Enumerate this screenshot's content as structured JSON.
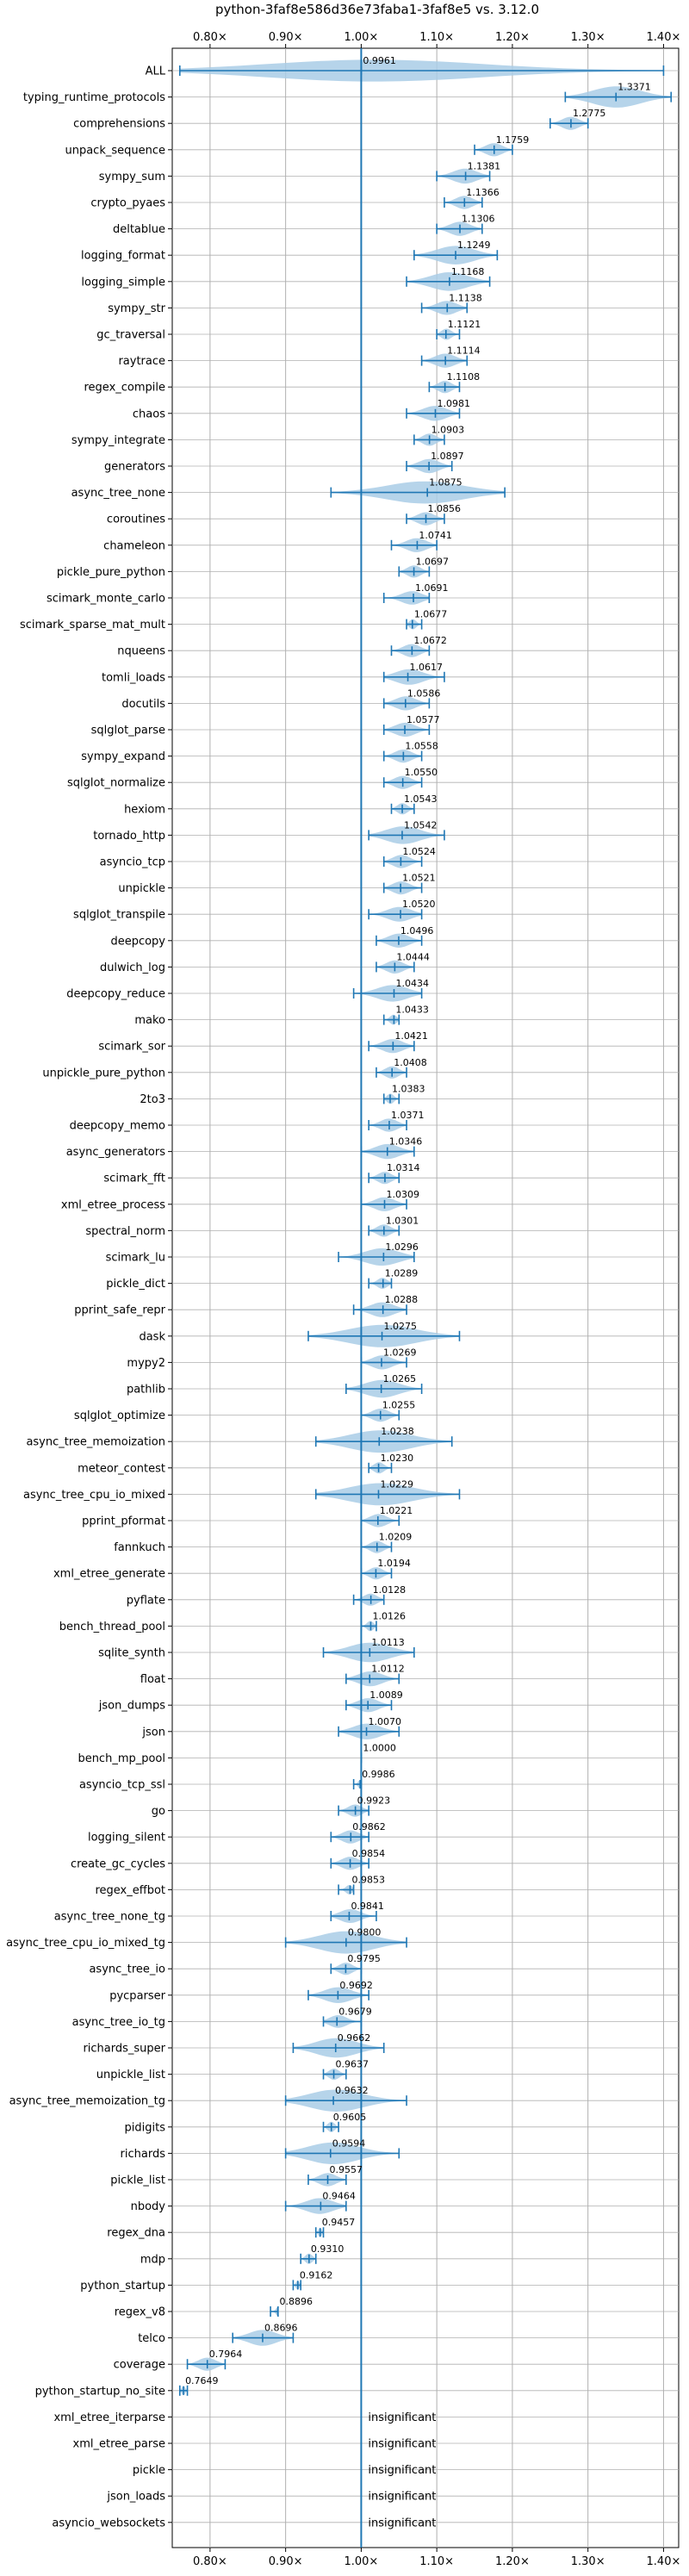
{
  "chart_data": {
    "type": "violin",
    "title": "python-3faf8e586d36e73faba1-3faf8e5 vs. 3.12.0",
    "xlabel": "",
    "ylabel": "",
    "xlim": [
      0.75,
      1.42
    ],
    "x_ticks": [
      0.8,
      0.9,
      1.0,
      1.1,
      1.2,
      1.3,
      1.4
    ],
    "x_tick_labels": [
      "0.80×",
      "0.90×",
      "1.00×",
      "1.10×",
      "1.20×",
      "1.30×",
      "1.40×"
    ],
    "x_ticks_top": true,
    "grid": true,
    "reference_line": 1.0,
    "colors": {
      "violin": "#a9cce6",
      "whisker": "#1f77b4",
      "grid": "#b0b0b0",
      "ref": "#1f77b4"
    },
    "insignificant_label": "insignificant",
    "benchmarks": [
      {
        "name": "ALL",
        "value": 1.0,
        "label": "0.9961",
        "min": 0.76,
        "max": 1.4
      },
      {
        "name": "typing_runtime_protocols",
        "value": 1.3371,
        "label": "1.3371",
        "min": 1.27,
        "max": 1.41
      },
      {
        "name": "comprehensions",
        "value": 1.2775,
        "label": "1.2775",
        "min": 1.25,
        "max": 1.3
      },
      {
        "name": "unpack_sequence",
        "value": 1.1759,
        "label": "1.1759",
        "min": 1.15,
        "max": 1.2
      },
      {
        "name": "sympy_sum",
        "value": 1.1381,
        "label": "1.1381",
        "min": 1.1,
        "max": 1.17
      },
      {
        "name": "crypto_pyaes",
        "value": 1.1366,
        "label": "1.1366",
        "min": 1.11,
        "max": 1.16
      },
      {
        "name": "deltablue",
        "value": 1.1306,
        "label": "1.1306",
        "min": 1.1,
        "max": 1.16
      },
      {
        "name": "logging_format",
        "value": 1.1249,
        "label": "1.1249",
        "min": 1.07,
        "max": 1.18
      },
      {
        "name": "logging_simple",
        "value": 1.1168,
        "label": "1.1168",
        "min": 1.06,
        "max": 1.17
      },
      {
        "name": "sympy_str",
        "value": 1.1138,
        "label": "1.1138",
        "min": 1.08,
        "max": 1.14
      },
      {
        "name": "gc_traversal",
        "value": 1.1121,
        "label": "1.1121",
        "min": 1.1,
        "max": 1.13
      },
      {
        "name": "raytrace",
        "value": 1.1114,
        "label": "1.1114",
        "min": 1.08,
        "max": 1.14
      },
      {
        "name": "regex_compile",
        "value": 1.1108,
        "label": "1.1108",
        "min": 1.09,
        "max": 1.13
      },
      {
        "name": "chaos",
        "value": 1.0981,
        "label": "1.0981",
        "min": 1.06,
        "max": 1.13
      },
      {
        "name": "sympy_integrate",
        "value": 1.0903,
        "label": "1.0903",
        "min": 1.07,
        "max": 1.11
      },
      {
        "name": "generators",
        "value": 1.0897,
        "label": "1.0897",
        "min": 1.06,
        "max": 1.12
      },
      {
        "name": "async_tree_none",
        "value": 1.0875,
        "label": "1.0875",
        "min": 0.96,
        "max": 1.19
      },
      {
        "name": "coroutines",
        "value": 1.0856,
        "label": "1.0856",
        "min": 1.06,
        "max": 1.11
      },
      {
        "name": "chameleon",
        "value": 1.0741,
        "label": "1.0741",
        "min": 1.04,
        "max": 1.1
      },
      {
        "name": "pickle_pure_python",
        "value": 1.0697,
        "label": "1.0697",
        "min": 1.05,
        "max": 1.09
      },
      {
        "name": "scimark_monte_carlo",
        "value": 1.0691,
        "label": "1.0691",
        "min": 1.03,
        "max": 1.09
      },
      {
        "name": "scimark_sparse_mat_mult",
        "value": 1.0677,
        "label": "1.0677",
        "min": 1.06,
        "max": 1.08
      },
      {
        "name": "nqueens",
        "value": 1.0672,
        "label": "1.0672",
        "min": 1.04,
        "max": 1.09
      },
      {
        "name": "tomli_loads",
        "value": 1.0617,
        "label": "1.0617",
        "min": 1.03,
        "max": 1.11
      },
      {
        "name": "docutils",
        "value": 1.0586,
        "label": "1.0586",
        "min": 1.03,
        "max": 1.09
      },
      {
        "name": "sqlglot_parse",
        "value": 1.0577,
        "label": "1.0577",
        "min": 1.03,
        "max": 1.09
      },
      {
        "name": "sympy_expand",
        "value": 1.0558,
        "label": "1.0558",
        "min": 1.03,
        "max": 1.08
      },
      {
        "name": "sqlglot_normalize",
        "value": 1.055,
        "label": "1.0550",
        "min": 1.03,
        "max": 1.08
      },
      {
        "name": "hexiom",
        "value": 1.0543,
        "label": "1.0543",
        "min": 1.04,
        "max": 1.07
      },
      {
        "name": "tornado_http",
        "value": 1.0542,
        "label": "1.0542",
        "min": 1.01,
        "max": 1.11
      },
      {
        "name": "asyncio_tcp",
        "value": 1.0524,
        "label": "1.0524",
        "min": 1.03,
        "max": 1.08
      },
      {
        "name": "unpickle",
        "value": 1.0521,
        "label": "1.0521",
        "min": 1.03,
        "max": 1.08
      },
      {
        "name": "sqlglot_transpile",
        "value": 1.052,
        "label": "1.0520",
        "min": 1.01,
        "max": 1.08
      },
      {
        "name": "deepcopy",
        "value": 1.0496,
        "label": "1.0496",
        "min": 1.02,
        "max": 1.08
      },
      {
        "name": "dulwich_log",
        "value": 1.0444,
        "label": "1.0444",
        "min": 1.02,
        "max": 1.07
      },
      {
        "name": "deepcopy_reduce",
        "value": 1.0434,
        "label": "1.0434",
        "min": 0.99,
        "max": 1.08
      },
      {
        "name": "mako",
        "value": 1.0433,
        "label": "1.0433",
        "min": 1.03,
        "max": 1.05
      },
      {
        "name": "scimark_sor",
        "value": 1.0421,
        "label": "1.0421",
        "min": 1.01,
        "max": 1.07
      },
      {
        "name": "unpickle_pure_python",
        "value": 1.0408,
        "label": "1.0408",
        "min": 1.02,
        "max": 1.06
      },
      {
        "name": "2to3",
        "value": 1.0383,
        "label": "1.0383",
        "min": 1.03,
        "max": 1.05
      },
      {
        "name": "deepcopy_memo",
        "value": 1.0371,
        "label": "1.0371",
        "min": 1.01,
        "max": 1.06
      },
      {
        "name": "async_generators",
        "value": 1.0346,
        "label": "1.0346",
        "min": 1.0,
        "max": 1.07
      },
      {
        "name": "scimark_fft",
        "value": 1.0314,
        "label": "1.0314",
        "min": 1.01,
        "max": 1.05
      },
      {
        "name": "xml_etree_process",
        "value": 1.0309,
        "label": "1.0309",
        "min": 1.0,
        "max": 1.06
      },
      {
        "name": "spectral_norm",
        "value": 1.0301,
        "label": "1.0301",
        "min": 1.01,
        "max": 1.05
      },
      {
        "name": "scimark_lu",
        "value": 1.0296,
        "label": "1.0296",
        "min": 0.97,
        "max": 1.07
      },
      {
        "name": "pickle_dict",
        "value": 1.0289,
        "label": "1.0289",
        "min": 1.01,
        "max": 1.04
      },
      {
        "name": "pprint_safe_repr",
        "value": 1.0288,
        "label": "1.0288",
        "min": 0.99,
        "max": 1.06
      },
      {
        "name": "dask",
        "value": 1.0275,
        "label": "1.0275",
        "min": 0.93,
        "max": 1.13
      },
      {
        "name": "mypy2",
        "value": 1.0269,
        "label": "1.0269",
        "min": 1.0,
        "max": 1.06
      },
      {
        "name": "pathlib",
        "value": 1.0265,
        "label": "1.0265",
        "min": 0.98,
        "max": 1.08
      },
      {
        "name": "sqlglot_optimize",
        "value": 1.0255,
        "label": "1.0255",
        "min": 1.0,
        "max": 1.05
      },
      {
        "name": "async_tree_memoization",
        "value": 1.0238,
        "label": "1.0238",
        "min": 0.94,
        "max": 1.12
      },
      {
        "name": "meteor_contest",
        "value": 1.023,
        "label": "1.0230",
        "min": 1.01,
        "max": 1.04
      },
      {
        "name": "async_tree_cpu_io_mixed",
        "value": 1.0229,
        "label": "1.0229",
        "min": 0.94,
        "max": 1.13
      },
      {
        "name": "pprint_pformat",
        "value": 1.0221,
        "label": "1.0221",
        "min": 1.0,
        "max": 1.05
      },
      {
        "name": "fannkuch",
        "value": 1.0209,
        "label": "1.0209",
        "min": 1.0,
        "max": 1.04
      },
      {
        "name": "xml_etree_generate",
        "value": 1.0194,
        "label": "1.0194",
        "min": 1.0,
        "max": 1.04
      },
      {
        "name": "pyflate",
        "value": 1.0128,
        "label": "1.0128",
        "min": 0.99,
        "max": 1.03
      },
      {
        "name": "bench_thread_pool",
        "value": 1.0126,
        "label": "1.0126",
        "min": 1.0,
        "max": 1.02
      },
      {
        "name": "sqlite_synth",
        "value": 1.0113,
        "label": "1.0113",
        "min": 0.95,
        "max": 1.07
      },
      {
        "name": "float",
        "value": 1.0112,
        "label": "1.0112",
        "min": 0.98,
        "max": 1.05
      },
      {
        "name": "json_dumps",
        "value": 1.0089,
        "label": "1.0089",
        "min": 0.98,
        "max": 1.04
      },
      {
        "name": "json",
        "value": 1.007,
        "label": "1.0070",
        "min": 0.97,
        "max": 1.05
      },
      {
        "name": "bench_mp_pool",
        "value": 1.0,
        "label": "1.0000",
        "min": 1.0,
        "max": 1.0
      },
      {
        "name": "asyncio_tcp_ssl",
        "value": 0.9986,
        "label": "0.9986",
        "min": 0.99,
        "max": 1.0
      },
      {
        "name": "go",
        "value": 0.9923,
        "label": "0.9923",
        "min": 0.97,
        "max": 1.01
      },
      {
        "name": "logging_silent",
        "value": 0.9862,
        "label": "0.9862",
        "min": 0.96,
        "max": 1.01
      },
      {
        "name": "create_gc_cycles",
        "value": 0.9854,
        "label": "0.9854",
        "min": 0.96,
        "max": 1.01
      },
      {
        "name": "regex_effbot",
        "value": 0.9853,
        "label": "0.9853",
        "min": 0.97,
        "max": 0.99
      },
      {
        "name": "async_tree_none_tg",
        "value": 0.9841,
        "label": "0.9841",
        "min": 0.96,
        "max": 1.02
      },
      {
        "name": "async_tree_cpu_io_mixed_tg",
        "value": 0.98,
        "label": "0.9800",
        "min": 0.9,
        "max": 1.06
      },
      {
        "name": "async_tree_io",
        "value": 0.9795,
        "label": "0.9795",
        "min": 0.96,
        "max": 1.0
      },
      {
        "name": "pycparser",
        "value": 0.9692,
        "label": "0.9692",
        "min": 0.93,
        "max": 1.01
      },
      {
        "name": "async_tree_io_tg",
        "value": 0.9679,
        "label": "0.9679",
        "min": 0.95,
        "max": 1.0
      },
      {
        "name": "richards_super",
        "value": 0.9662,
        "label": "0.9662",
        "min": 0.91,
        "max": 1.03
      },
      {
        "name": "unpickle_list",
        "value": 0.9637,
        "label": "0.9637",
        "min": 0.95,
        "max": 0.98
      },
      {
        "name": "async_tree_memoization_tg",
        "value": 0.9632,
        "label": "0.9632",
        "min": 0.9,
        "max": 1.06
      },
      {
        "name": "pidigits",
        "value": 0.9605,
        "label": "0.9605",
        "min": 0.95,
        "max": 0.97
      },
      {
        "name": "richards",
        "value": 0.9594,
        "label": "0.9594",
        "min": 0.9,
        "max": 1.05
      },
      {
        "name": "pickle_list",
        "value": 0.9557,
        "label": "0.9557",
        "min": 0.93,
        "max": 0.98
      },
      {
        "name": "nbody",
        "value": 0.9464,
        "label": "0.9464",
        "min": 0.9,
        "max": 0.98
      },
      {
        "name": "regex_dna",
        "value": 0.9457,
        "label": "0.9457",
        "min": 0.94,
        "max": 0.95
      },
      {
        "name": "mdp",
        "value": 0.931,
        "label": "0.9310",
        "min": 0.92,
        "max": 0.94
      },
      {
        "name": "python_startup",
        "value": 0.9162,
        "label": "0.9162",
        "min": 0.91,
        "max": 0.92
      },
      {
        "name": "regex_v8",
        "value": 0.8896,
        "label": "0.8896",
        "min": 0.88,
        "max": 0.89
      },
      {
        "name": "telco",
        "value": 0.8696,
        "label": "0.8696",
        "min": 0.83,
        "max": 0.91
      },
      {
        "name": "coverage",
        "value": 0.7964,
        "label": "0.7964",
        "min": 0.77,
        "max": 0.82
      },
      {
        "name": "python_startup_no_site",
        "value": 0.7649,
        "label": "0.7649",
        "min": 0.76,
        "max": 0.77
      },
      {
        "name": "xml_etree_iterparse",
        "value": null,
        "label": "",
        "min": null,
        "max": null
      },
      {
        "name": "xml_etree_parse",
        "value": null,
        "label": "",
        "min": null,
        "max": null
      },
      {
        "name": "pickle",
        "value": null,
        "label": "",
        "min": null,
        "max": null
      },
      {
        "name": "json_loads",
        "value": null,
        "label": "",
        "min": null,
        "max": null
      },
      {
        "name": "asyncio_websockets",
        "value": null,
        "label": "",
        "min": null,
        "max": null
      }
    ]
  }
}
